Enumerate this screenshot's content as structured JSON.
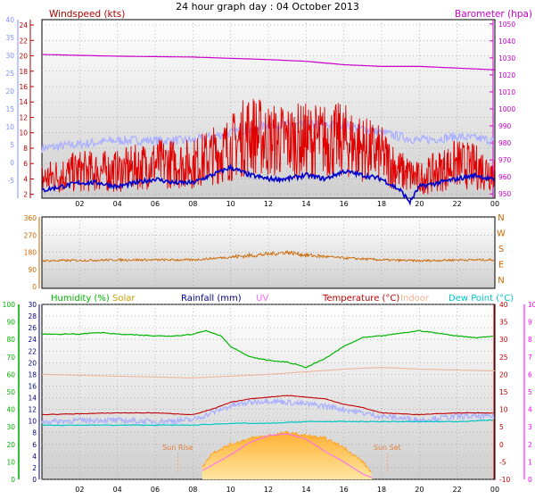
{
  "title": "24 hour graph day : 04 October 2013",
  "colors": {
    "background": "#ffffff",
    "plot_bg_top": "#ffffff",
    "plot_bg_bottom": "#d2d2d2",
    "grid": "#9a9a9a",
    "windspeed": "#e00000",
    "windspeed_label": "#b00000",
    "avg_wind": "#0000cc",
    "gust_band": "#aab0ff",
    "barometer": "#cc00cc",
    "wind_dir": "#cc6600",
    "humidity": "#00b400",
    "solar": "#c8a000",
    "rainfall": "#000080",
    "uv": "#ff66ff",
    "temperature": "#c00000",
    "indoor": "#f0b090",
    "dew_point": "#00c8c8",
    "left_axis_blue": "#8090ff",
    "left_axis_green": "#00b400",
    "right_axis_pink": "#ff00ff"
  },
  "chart_data": [
    {
      "id": "wind",
      "type": "line",
      "labels": {
        "left": "Windspeed (kts)",
        "right": "Barometer (hpa)"
      },
      "x_ticks": [
        "02",
        "04",
        "06",
        "08",
        "10",
        "12",
        "14",
        "16",
        "18",
        "20",
        "22",
        "00"
      ],
      "y_left_inner": {
        "range": [
          2,
          24
        ],
        "ticks": [
          2,
          4,
          6,
          8,
          10,
          12,
          14,
          16,
          18,
          20,
          22,
          24
        ]
      },
      "y_left_outer": {
        "range": [
          -10,
          40
        ],
        "ticks": [
          -5,
          0,
          5,
          10,
          15,
          20,
          25,
          30,
          35,
          40
        ]
      },
      "y_right": {
        "range": [
          947.5,
          1052.5
        ],
        "ticks": [
          950,
          960,
          970,
          980,
          990,
          1000,
          1010,
          1020,
          1030,
          1040,
          1050
        ]
      },
      "series": [
        {
          "key": "barometer",
          "hours": [
            0,
            4,
            8,
            12,
            14,
            16,
            18,
            20,
            22,
            24
          ],
          "values": [
            1032,
            1031,
            1030.5,
            1029,
            1028,
            1026,
            1025,
            1025,
            1024,
            1023
          ]
        },
        {
          "key": "gust_band",
          "hours": [
            0,
            2,
            4,
            6,
            8,
            10,
            12,
            14,
            16,
            18,
            20,
            22,
            24
          ],
          "values": [
            8,
            8.5,
            9,
            9,
            9,
            10,
            11,
            11,
            11,
            10,
            9,
            9.5,
            9
          ]
        },
        {
          "key": "windspeed",
          "hours": [
            0,
            2,
            4,
            6,
            8,
            10,
            11,
            12,
            13,
            14,
            15,
            16,
            17,
            18,
            19,
            20,
            22,
            24
          ],
          "values": [
            4,
            5,
            5,
            6,
            6,
            8,
            10,
            9,
            9,
            9,
            9,
            9,
            8,
            7,
            5,
            4,
            6,
            5
          ]
        },
        {
          "key": "avg_wind",
          "hours": [
            0,
            1,
            2,
            3,
            4,
            5,
            6,
            7,
            8,
            9,
            10,
            11,
            12,
            13,
            14,
            15,
            16,
            17,
            18,
            19,
            19.5,
            20,
            21,
            22,
            23,
            24
          ],
          "values": [
            2.5,
            3,
            3.5,
            3.5,
            3,
            3.5,
            4,
            3.5,
            3.5,
            4.5,
            5.5,
            4.5,
            4,
            4,
            4.5,
            4,
            5,
            4.5,
            4,
            2.5,
            1,
            3,
            3.5,
            4,
            4.5,
            3.8
          ]
        }
      ]
    },
    {
      "id": "direction",
      "type": "line",
      "labels": {
        "right": [
          "N",
          "W",
          "S",
          "E",
          "N"
        ]
      },
      "y_left": {
        "range": [
          0,
          360
        ],
        "ticks": [
          0,
          90,
          180,
          270,
          360
        ]
      },
      "series": [
        {
          "key": "wind_dir",
          "hours": [
            0,
            4,
            8,
            10,
            12,
            13,
            14,
            16,
            18,
            20,
            22,
            24
          ],
          "values": [
            135,
            140,
            140,
            155,
            170,
            180,
            165,
            150,
            140,
            135,
            140,
            140
          ]
        }
      ]
    },
    {
      "id": "climate",
      "type": "line",
      "legend": [
        "Humidity (%)",
        "Solar",
        "Rainfall (mm)",
        "UV",
        "Temperature (°C)",
        "Indoor",
        "Dew Point (°C)"
      ],
      "x_ticks": [
        "02",
        "04",
        "06",
        "08",
        "10",
        "12",
        "14",
        "16",
        "18",
        "20",
        "22",
        "00"
      ],
      "y_left_outer": {
        "range": [
          0,
          100
        ],
        "ticks": [
          0,
          10,
          20,
          30,
          40,
          50,
          60,
          70,
          80,
          90,
          100
        ]
      },
      "y_left_inner": {
        "range": [
          0,
          30
        ],
        "ticks": [
          0,
          2,
          4,
          6,
          8,
          10,
          12,
          14,
          16,
          18,
          20,
          22,
          24,
          26,
          28,
          30
        ]
      },
      "y_right_inner": {
        "range": [
          -10,
          40
        ],
        "ticks": [
          -10,
          -5,
          0,
          5,
          10,
          15,
          20,
          25,
          30,
          35,
          40
        ]
      },
      "y_right_outer": {
        "range": [
          0,
          10
        ],
        "ticks": [
          0,
          1,
          2,
          3,
          4,
          5,
          6,
          7,
          8,
          9,
          10
        ]
      },
      "annotations": [
        {
          "text": "Sun Rise",
          "hour": 7.2
        },
        {
          "text": "Sun Set",
          "hour": 18.3
        }
      ],
      "series": [
        {
          "key": "humidity",
          "axis": "left_outer",
          "hours": [
            0,
            2,
            3,
            4,
            6,
            7,
            8,
            8.7,
            9.5,
            10,
            11,
            12,
            13,
            14,
            15,
            16,
            17,
            18,
            20,
            22,
            23,
            24
          ],
          "values": [
            83,
            83,
            84,
            83,
            82,
            82,
            83,
            85,
            82,
            76,
            70,
            68,
            67,
            64,
            69,
            76,
            81,
            82,
            85,
            82,
            81,
            82
          ]
        },
        {
          "key": "indoor",
          "axis": "right_inner",
          "hours": [
            0,
            4,
            8,
            12,
            16,
            18,
            20,
            24
          ],
          "values": [
            20,
            19.5,
            19,
            20,
            21.5,
            22,
            21.5,
            21
          ]
        },
        {
          "key": "temperature",
          "axis": "right_inner",
          "hours": [
            0,
            4,
            6,
            8,
            9,
            10,
            11,
            12,
            13,
            14,
            15,
            16,
            17,
            18,
            20,
            22,
            24
          ],
          "values": [
            8.5,
            9,
            9,
            8.5,
            10,
            12,
            13,
            13.5,
            14,
            13.5,
            13,
            11.5,
            10.5,
            9,
            8.5,
            9,
            9
          ]
        },
        {
          "key": "gust_band",
          "axis": "right_inner",
          "hours": [
            0,
            3,
            6,
            8,
            9,
            10,
            11,
            12,
            13,
            14,
            15,
            16,
            18,
            20,
            22,
            24
          ],
          "values": [
            6.5,
            7,
            6.5,
            7,
            9,
            11,
            12,
            12.5,
            12,
            11.5,
            11,
            10,
            8,
            7,
            8,
            8
          ]
        },
        {
          "key": "dew_point",
          "axis": "right_inner",
          "hours": [
            0,
            6,
            8,
            10,
            12,
            14,
            16,
            18,
            20,
            22,
            24
          ],
          "values": [
            5.5,
            5.5,
            5.5,
            6,
            6,
            6.5,
            6.5,
            6.5,
            6.5,
            6.5,
            7
          ]
        },
        {
          "key": "solar",
          "axis": "left_inner",
          "hours": [
            8.5,
            9,
            10,
            11,
            12,
            13,
            14,
            15,
            16,
            17,
            17.5
          ],
          "values": [
            2,
            4.5,
            6,
            7,
            7.5,
            8,
            7.5,
            7,
            5.5,
            3,
            1
          ]
        },
        {
          "key": "uv",
          "axis": "right_outer",
          "hours": [
            8.5,
            10,
            11,
            12,
            13,
            14,
            15,
            16,
            17,
            17.5
          ],
          "values": [
            0.5,
            1.4,
            2.1,
            2.5,
            2.6,
            2.3,
            1.6,
            1.0,
            0.3,
            0.1
          ]
        }
      ]
    }
  ]
}
